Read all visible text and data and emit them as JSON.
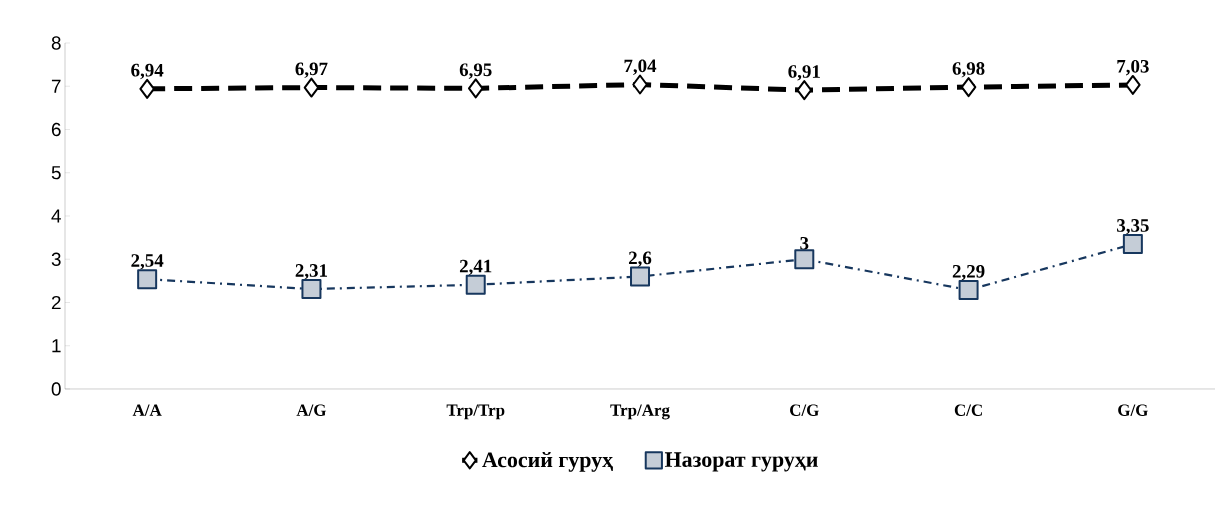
{
  "chart_data": {
    "type": "line",
    "categories": [
      "A/A",
      "A/G",
      "Trp/Trp",
      "Trp/Arg",
      "C/G",
      "C/C",
      "G/G"
    ],
    "series": [
      {
        "name": "Асосий гуруҳ",
        "color": "#000000",
        "values": [
          6.94,
          6.97,
          6.95,
          7.04,
          6.91,
          6.98,
          7.03
        ],
        "value_labels": [
          "6,94",
          "6,97",
          "6,95",
          "7,04",
          "6,91",
          "6,98",
          "7,03"
        ],
        "marker": "diamond",
        "line_style": "dashed"
      },
      {
        "name": "Назорат гуруҳи",
        "color": "#17375e",
        "values": [
          2.54,
          2.31,
          2.41,
          2.6,
          3,
          2.29,
          3.35
        ],
        "value_labels": [
          "2,54",
          "2,31",
          "2,41",
          "2,6",
          "3",
          "2,29",
          "3,35"
        ],
        "marker": "square",
        "line_style": "dashdot"
      }
    ],
    "ylim": [
      0,
      8
    ],
    "yticks": [
      0,
      1,
      2,
      3,
      4,
      5,
      6,
      7,
      8
    ],
    "grid": false,
    "legend": "bottom"
  }
}
